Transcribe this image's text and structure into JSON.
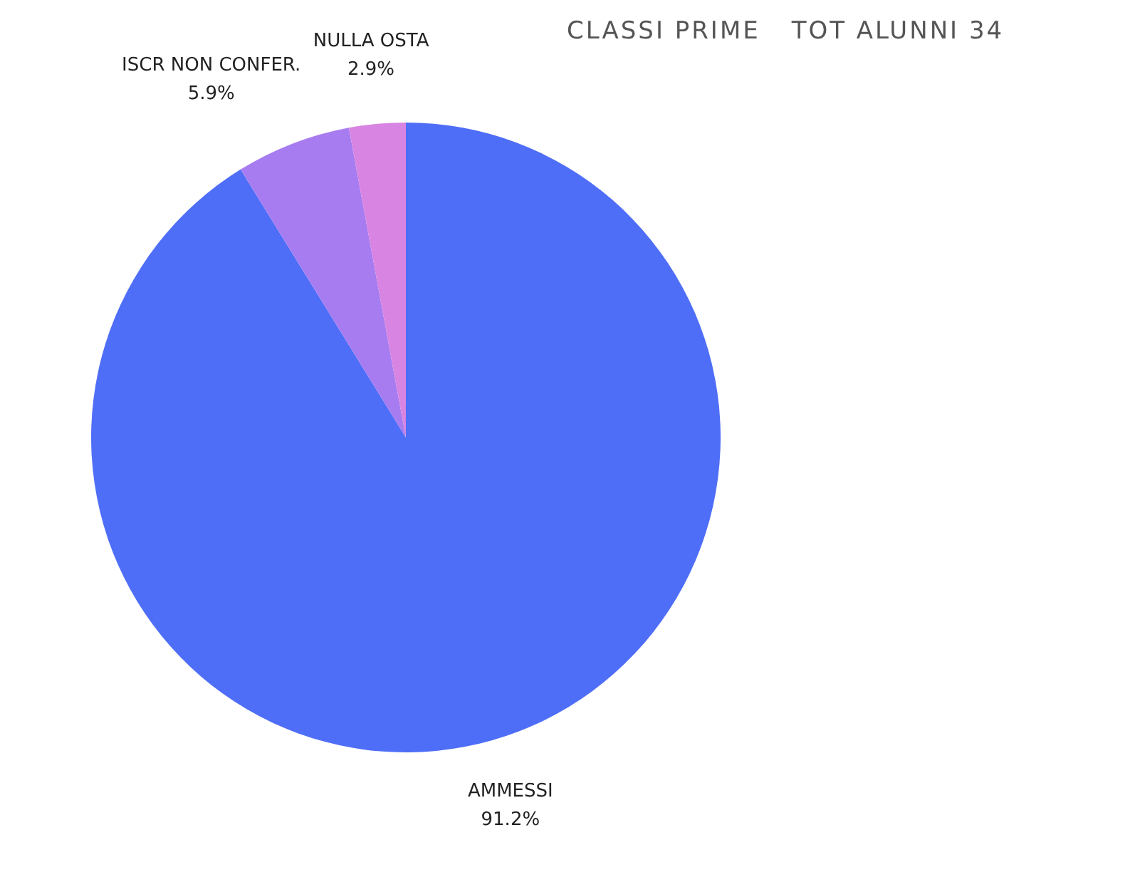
{
  "chart_data": {
    "type": "pie",
    "title": "CLASSI PRIME",
    "subtitle": "TOT ALUNNI 34",
    "categories": [
      "AMMESSI",
      "ISCR NON CONFER.",
      "NULLA OSTA"
    ],
    "values": [
      91.2,
      5.9,
      2.9
    ],
    "colors": [
      "#4f6ef7",
      "#a77cf0",
      "#d884e2"
    ],
    "value_labels": [
      "91.2%",
      "5.9%",
      "2.9%"
    ],
    "legend": false
  }
}
